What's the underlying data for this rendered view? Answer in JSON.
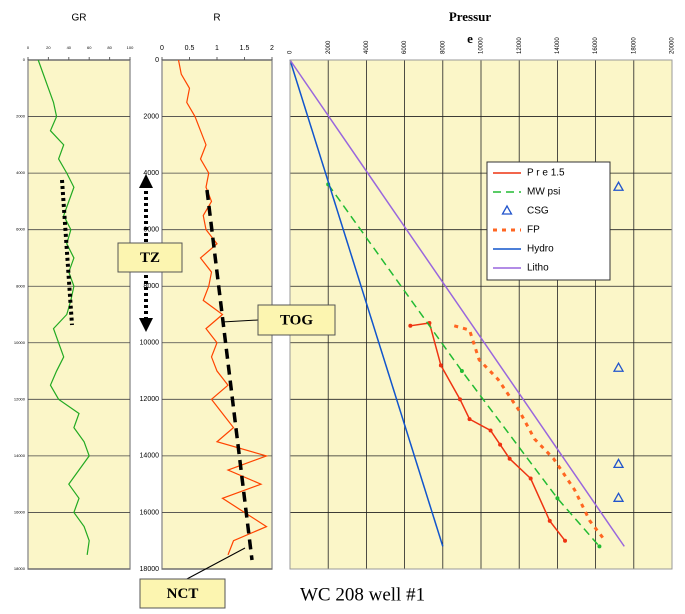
{
  "chart_data": [
    {
      "type": "line",
      "title": "GR",
      "color": "#22aa22",
      "depths": [
        0,
        500,
        1000,
        1500,
        2000,
        2500,
        3000,
        3500,
        4000,
        4500,
        5000,
        5500,
        6000,
        6500,
        7000,
        7500,
        8000,
        8500,
        9000,
        9500,
        10000,
        10500,
        11000,
        11500,
        12000,
        12500,
        13000,
        13500,
        14000,
        14500,
        15000,
        15500,
        16000,
        16500,
        17000,
        17500
      ],
      "values": [
        10,
        15,
        20,
        25,
        28,
        22,
        35,
        30,
        38,
        45,
        40,
        35,
        42,
        38,
        45,
        40,
        45,
        42,
        38,
        25,
        30,
        35,
        28,
        22,
        30,
        50,
        45,
        55,
        60,
        50,
        40,
        50,
        45,
        55,
        60,
        58
      ],
      "xlim": [
        0,
        100
      ],
      "xticks": [
        0,
        20,
        40,
        60,
        80,
        100
      ],
      "ylim": [
        0,
        18000
      ],
      "yticks": [
        0,
        2000,
        4000,
        6000,
        8000,
        10000,
        12000,
        14000,
        16000,
        18000
      ]
    },
    {
      "type": "line",
      "title": "R",
      "color": "#ff4400",
      "depths": [
        0,
        500,
        1000,
        1500,
        2000,
        2500,
        3000,
        3500,
        4000,
        4500,
        5000,
        5500,
        6000,
        6500,
        7000,
        7500,
        8000,
        8500,
        9000,
        9500,
        10000,
        10500,
        11000,
        11500,
        12000,
        12500,
        13000,
        13500,
        14000,
        14500,
        15000,
        15500,
        16000,
        16500,
        17000,
        17500
      ],
      "values": [
        0.3,
        0.35,
        0.5,
        0.45,
        0.6,
        0.7,
        0.8,
        0.7,
        0.85,
        0.8,
        0.9,
        0.75,
        0.8,
        1.0,
        0.7,
        0.9,
        0.85,
        0.75,
        1.1,
        0.8,
        1.0,
        0.9,
        1.0,
        1.2,
        0.9,
        1.1,
        1.3,
        1.0,
        1.9,
        1.2,
        1.8,
        1.1,
        1.5,
        1.9,
        1.3,
        1.2
      ],
      "xlim": [
        0,
        2
      ],
      "xticks": [
        0,
        0.5,
        1,
        1.5,
        2
      ],
      "ylim": [
        0,
        18000
      ],
      "yticks": [
        0,
        2000,
        4000,
        6000,
        8000,
        10000,
        12000,
        14000,
        16000,
        18000
      ]
    },
    {
      "type": "pressure",
      "title": [
        "Pressur",
        "e"
      ],
      "xlim": [
        0,
        20000
      ],
      "xticks": [
        0,
        2000,
        4000,
        6000,
        8000,
        10000,
        12000,
        14000,
        16000,
        18000,
        20000
      ],
      "ylim": [
        0,
        18000
      ],
      "ygrid": [
        2000,
        4000,
        6000,
        8000,
        10000,
        12000,
        14000,
        16000
      ],
      "series": [
        {
          "name": "P r e 1.5",
          "color": "#ee3311",
          "style": "solid-markers",
          "values": [
            6300,
            7300,
            7900,
            8900,
            9400,
            10500,
            11000,
            11500,
            12600,
            13600,
            14400
          ],
          "depths": [
            9400,
            9300,
            10800,
            12000,
            12700,
            13100,
            13600,
            14100,
            14800,
            16300,
            17000
          ]
        },
        {
          "name": "MW psi",
          "color": "#22bb33",
          "style": "dashed-markers",
          "values": [
            2000,
            9000,
            14000,
            16200
          ],
          "depths": [
            4400,
            11000,
            15500,
            17200
          ]
        },
        {
          "name": "CSG",
          "color": "#2255cc",
          "style": "triangles",
          "values": [
            17200,
            17200,
            17200,
            17200
          ],
          "depths": [
            4500,
            10900,
            14300,
            15500
          ]
        },
        {
          "name": "FP",
          "color": "#ff6622",
          "style": "dotted",
          "values": [
            8600,
            9400,
            9900,
            10900,
            12000,
            12800,
            13800,
            14900,
            15700,
            16500
          ],
          "depths": [
            9400,
            9550,
            10600,
            11300,
            12400,
            13400,
            14100,
            15200,
            16300,
            17000
          ]
        },
        {
          "name": "Hydro",
          "color": "#1155cc",
          "style": "solid",
          "values": [
            0,
            8000
          ],
          "depths": [
            0,
            17200
          ]
        },
        {
          "name": "Litho",
          "color": "#9966dd",
          "style": "solid",
          "values": [
            0,
            17500
          ],
          "depths": [
            0,
            17200
          ]
        }
      ]
    }
  ],
  "annotations": {
    "tz": "TZ",
    "tog": "TOG",
    "nct": "NCT"
  },
  "caption": "WC 208 well #1"
}
